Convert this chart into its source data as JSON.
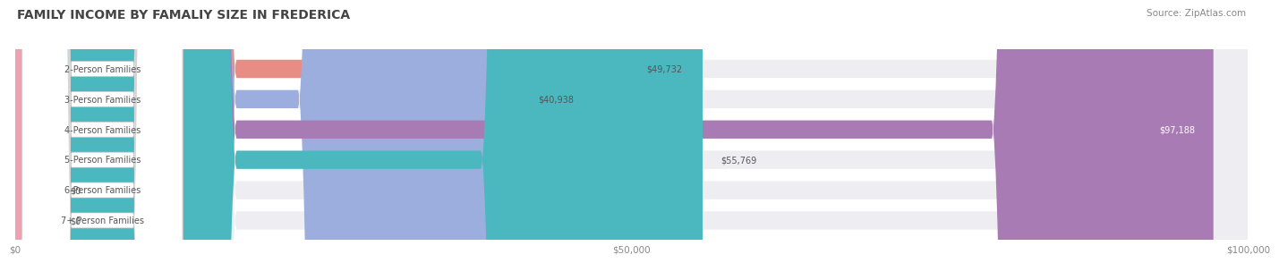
{
  "title": "FAMILY INCOME BY FAMALIY SIZE IN FREDERICA",
  "source": "Source: ZipAtlas.com",
  "categories": [
    "2-Person Families",
    "3-Person Families",
    "4-Person Families",
    "5-Person Families",
    "6-Person Families",
    "7+ Person Families"
  ],
  "values": [
    49732,
    40938,
    97188,
    55769,
    0,
    0
  ],
  "max_value": 100000,
  "bar_colors": [
    "#E88C84",
    "#9BAEDD",
    "#A97BB5",
    "#4BB8C0",
    "#B0B8E8",
    "#F0A0B0"
  ],
  "bar_bg_color": "#EDEDF2",
  "tick_labels": [
    "$0",
    "$50,000",
    "$100,000"
  ],
  "tick_values": [
    0,
    50000,
    100000
  ],
  "value_labels": [
    "$49,732",
    "$40,938",
    "$97,188",
    "$55,769",
    "$0",
    "$0"
  ],
  "background_color": "#FFFFFF",
  "title_fontsize": 10,
  "bar_label_fontsize": 7.0,
  "value_fontsize": 7.0,
  "source_fontsize": 7.5
}
